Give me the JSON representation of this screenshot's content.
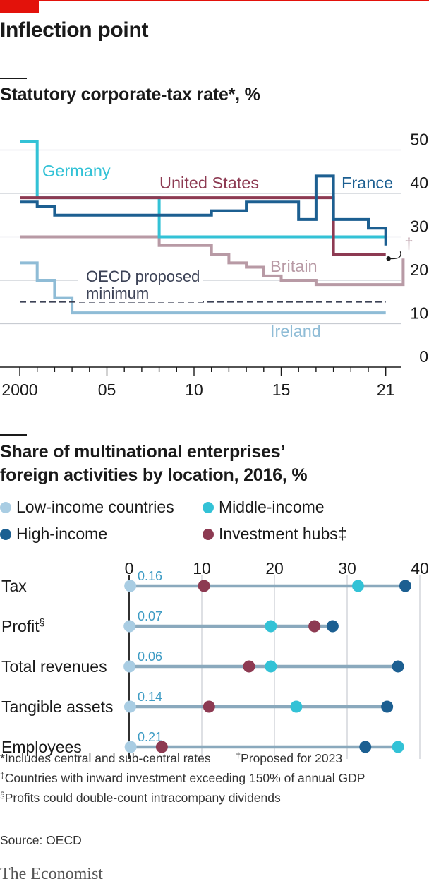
{
  "header": {
    "title": "Inflection point",
    "footnotes": [
      {
        "mark": "*",
        "text": "Includes central and sub-central rates"
      },
      {
        "mark": "†",
        "text": "Proposed for 2023"
      },
      {
        "mark": "‡",
        "text": "Countries with inward investment exceeding 150% of annual GDP"
      },
      {
        "mark": "§",
        "text": "Profits could double-count intracompany dividends"
      }
    ],
    "source": "Source: OECD",
    "brand": "The Economist"
  },
  "chart_data": [
    {
      "type": "line",
      "title": "Statutory corporate-tax rate*, %",
      "ylim": [
        0,
        50
      ],
      "yticks": [
        0,
        10,
        20,
        30,
        40,
        50
      ],
      "xlim": [
        2000,
        2022
      ],
      "xticks": [
        2000,
        2005,
        2010,
        2015,
        2021
      ],
      "xtick_labels": [
        "2000",
        "05",
        "10",
        "15",
        "21"
      ],
      "grid": true,
      "series": [
        {
          "name": "Germany",
          "color": "#33c2d6",
          "step": true,
          "x": [
            2000,
            2001,
            2008,
            2021
          ],
          "y": [
            52,
            39,
            30,
            30
          ]
        },
        {
          "name": "United States",
          "color": "#8d3a52",
          "step": true,
          "x": [
            2000,
            2018,
            2021
          ],
          "y": [
            39,
            26,
            26
          ]
        },
        {
          "name": "France",
          "color": "#1c5f91",
          "step": true,
          "x": [
            2000,
            2001,
            2002,
            2005,
            2011,
            2013,
            2016,
            2017,
            2018,
            2020,
            2021
          ],
          "y": [
            38,
            37,
            35,
            35,
            36,
            38,
            34,
            44,
            34,
            32,
            28
          ]
        },
        {
          "name": "Britain",
          "color": "#b89aa5",
          "step": true,
          "x": [
            2000,
            2008,
            2011,
            2012,
            2013,
            2014,
            2015,
            2017,
            2020,
            2021,
            2022
          ],
          "y": [
            30,
            28,
            26,
            24,
            23,
            21,
            20,
            19,
            19,
            19,
            25
          ]
        },
        {
          "name": "Ireland",
          "color": "#8fbcd6",
          "step": true,
          "x": [
            2000,
            2001,
            2002,
            2003,
            2021
          ],
          "y": [
            24,
            20,
            16,
            12.5,
            12.5
          ]
        },
        {
          "name": "OECD proposed minimum",
          "color": "#3c4256",
          "dashed": true,
          "x": [
            2000,
            2021
          ],
          "y": [
            15,
            15
          ]
        }
      ],
      "annotations": [
        {
          "text": "†",
          "target": "Britain",
          "x": 2022,
          "y": 25
        }
      ]
    },
    {
      "type": "scatter",
      "title": "Share of multinational enterprises’ foreign activities by location, 2016, %",
      "xlim": [
        0,
        40
      ],
      "xticks": [
        0,
        10,
        20,
        30,
        40
      ],
      "grid": true,
      "categories": [
        "Tax",
        "Profit§",
        "Total revenues",
        "Tangible assets",
        "Employees"
      ],
      "series": [
        {
          "name": "Low-income countries",
          "color": "#a9cde3",
          "values": [
            0.16,
            0.07,
            0.06,
            0.14,
            0.21
          ]
        },
        {
          "name": "Middle-income",
          "color": "#33c2d6",
          "values": [
            31.5,
            19.5,
            19.5,
            23,
            37
          ]
        },
        {
          "name": "High-income",
          "color": "#1c5f91",
          "values": [
            38,
            28,
            37,
            35.5,
            32.5
          ]
        },
        {
          "name": "Investment hubs‡",
          "color": "#8d3a52",
          "values": [
            10.3,
            25.5,
            16.5,
            11,
            4.5
          ]
        }
      ],
      "data_labels": [
        "0.16",
        "0.07",
        "0.06",
        "0.14",
        "0.21"
      ]
    }
  ]
}
